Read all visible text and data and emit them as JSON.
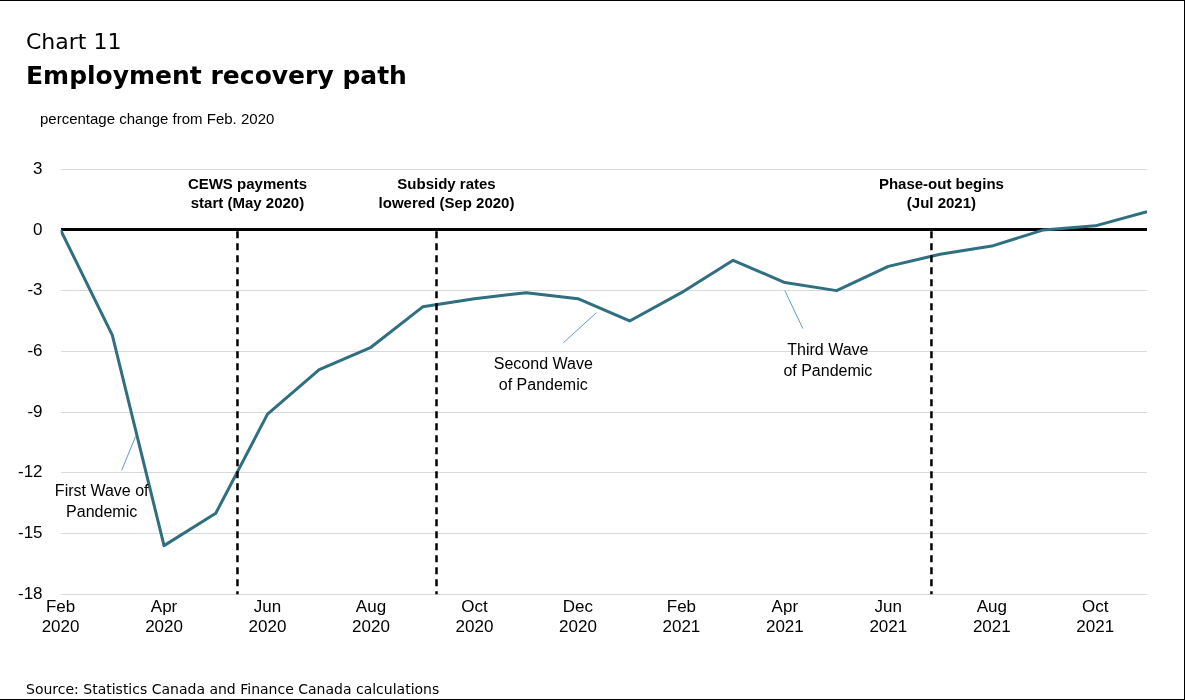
{
  "chart_data": {
    "type": "line",
    "subtitle": "Chart 11",
    "title": "Employment recovery path",
    "ylabel": "percentage change from Feb. 2020",
    "x": [
      "2020-02",
      "2020-03",
      "2020-04",
      "2020-05",
      "2020-06",
      "2020-07",
      "2020-08",
      "2020-09",
      "2020-10",
      "2020-11",
      "2020-12",
      "2021-01",
      "2021-02",
      "2021-03",
      "2021-04",
      "2021-05",
      "2021-06",
      "2021-07",
      "2021-08",
      "2021-09",
      "2021-10",
      "2021-11"
    ],
    "series": [
      {
        "color": "#2f6f80",
        "values": [
          0,
          -5.2,
          -15.6,
          -14.0,
          -9.1,
          -6.9,
          -5.8,
          -3.8,
          -3.4,
          -3.1,
          -3.4,
          -4.5,
          -3.1,
          -1.5,
          -2.6,
          -3.0,
          -1.8,
          -1.2,
          -0.8,
          0,
          0.2,
          0.9
        ]
      }
    ],
    "xlim": [
      "2020-02",
      "2021-11"
    ],
    "xticks": [
      {
        "value": "2020-02",
        "label": "Feb\n2020"
      },
      {
        "value": "2020-04",
        "label": "Apr\n2020"
      },
      {
        "value": "2020-06",
        "label": "Jun\n2020"
      },
      {
        "value": "2020-08",
        "label": "Aug\n2020"
      },
      {
        "value": "2020-10",
        "label": "Oct\n2020"
      },
      {
        "value": "2020-12",
        "label": "Dec\n2020"
      },
      {
        "value": "2021-02",
        "label": "Feb\n2021"
      },
      {
        "value": "2021-04",
        "label": "Apr\n2021"
      },
      {
        "value": "2021-06",
        "label": "Jun\n2021"
      },
      {
        "value": "2021-08",
        "label": "Aug\n2021"
      },
      {
        "value": "2021-10",
        "label": "Oct\n2021"
      }
    ],
    "ylim": [
      -18,
      3
    ],
    "yticks": [
      3,
      0,
      -3,
      -6,
      -9,
      -12,
      -15,
      -18
    ],
    "grid": "y",
    "marker": "none",
    "line_style": "solid",
    "legend": false,
    "ref_lines": [
      {
        "axis": "x",
        "value": "2020-05-14",
        "label": "CEWS payments\nstart (May 2020)",
        "color": "#000000",
        "line_style": "dashed"
      },
      {
        "axis": "x",
        "value": "2020-09-09",
        "label": "Subsidy rates\nlowered (Sep 2020)",
        "color": "#000000",
        "line_style": "dashed"
      },
      {
        "axis": "x",
        "value": "2021-06-26",
        "label": "Phase-out begins\n(Jul 2021)",
        "color": "#000000",
        "line_style": "dashed"
      }
    ],
    "annotations": [
      {
        "text": "First Wave of\nPandemic",
        "x": "2020-03-15",
        "y": -10
      },
      {
        "text": "Second Wave\nof Pandemic",
        "x": "2020-12-12",
        "y": -3.9
      },
      {
        "text": "Third Wave\nof Pandemic",
        "x": "2021-04",
        "y": -2.8
      },
      "Source: Statistics Canada and Finance Canada calculations"
    ]
  }
}
